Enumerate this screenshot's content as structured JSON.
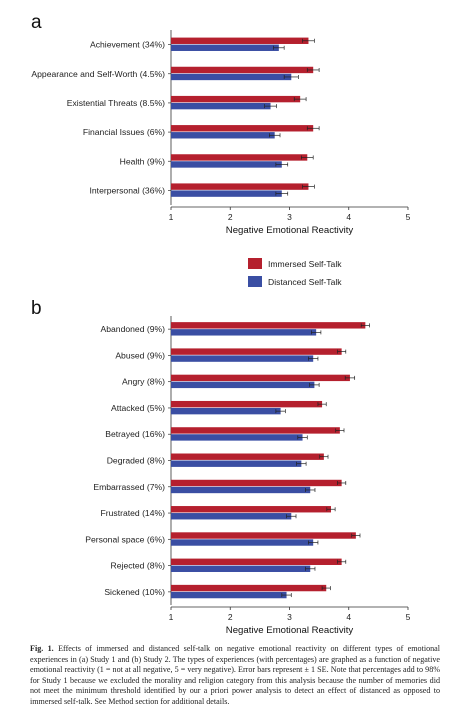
{
  "chart_data": [
    {
      "type": "bar",
      "orientation": "horizontal",
      "panel": "a",
      "categories": [
        "Achievement (34%)",
        "Appearance and Self-Worth (4.5%)",
        "Existential Threats (8.5%)",
        "Financial Issues (6%)",
        "Health (9%)",
        "Interpersonal (36%)"
      ],
      "series": [
        {
          "name": "Immersed Self-Talk",
          "values": [
            3.32,
            3.4,
            3.18,
            3.4,
            3.3,
            3.32
          ],
          "errors": [
            0.1,
            0.1,
            0.1,
            0.1,
            0.1,
            0.1
          ],
          "color": "#b5202e"
        },
        {
          "name": "Distanced Self-Talk",
          "values": [
            2.82,
            3.03,
            2.68,
            2.75,
            2.87,
            2.87
          ],
          "errors": [
            0.09,
            0.12,
            0.1,
            0.09,
            0.1,
            0.1
          ],
          "color": "#3a4ea3"
        }
      ],
      "xlabel": "Negative Emotional Reactivity",
      "xlim": [
        1,
        5
      ],
      "xticks": [
        "1",
        "2",
        "3",
        "4",
        "5"
      ],
      "legend": "bottom-right"
    },
    {
      "type": "bar",
      "orientation": "horizontal",
      "panel": "b",
      "categories": [
        "Abandoned (9%)",
        "Abused (9%)",
        "Angry (8%)",
        "Attacked (5%)",
        "Betrayed (16%)",
        "Degraded (8%)",
        "Embarrassed (7%)",
        "Frustrated (14%)",
        "Personal space (6%)",
        "Rejected (8%)",
        "Sickened (10%)"
      ],
      "series": [
        {
          "name": "Immersed Self-Talk",
          "values": [
            4.28,
            3.88,
            4.02,
            3.55,
            3.85,
            3.58,
            3.88,
            3.7,
            4.12,
            3.88,
            3.62
          ],
          "errors": [
            0.07,
            0.07,
            0.08,
            0.07,
            0.07,
            0.07,
            0.07,
            0.07,
            0.07,
            0.07,
            0.07
          ]
        },
        {
          "name": "Distanced Self-Talk",
          "values": [
            3.45,
            3.4,
            3.42,
            2.85,
            3.22,
            3.2,
            3.35,
            3.03,
            3.4,
            3.35,
            2.95
          ],
          "errors": [
            0.08,
            0.08,
            0.08,
            0.08,
            0.08,
            0.08,
            0.08,
            0.08,
            0.08,
            0.08,
            0.08
          ]
        }
      ],
      "xlabel": "Negative Emotional Reactivity",
      "xlim": [
        1,
        5
      ],
      "xticks": [
        "1",
        "2",
        "3",
        "4",
        "5"
      ]
    }
  ],
  "panel_letters": [
    "a",
    "b"
  ],
  "legend": {
    "immersed": "Immersed Self-Talk",
    "distanced": "Distanced Self-Talk"
  },
  "colors": {
    "immersed": "#b5202e",
    "distanced": "#3a4ea3"
  },
  "caption": {
    "label": "Fig. 1.",
    "text": "Effects of immersed and distanced self-talk on negative emotional reactivity on different types of emotional experiences in (a) Study 1 and (b) Study 2. The types of experiences (with percentages) are graphed as a function of negative emotional reactivity (1 = not at all negative, 5 = very negative). Error bars represent ± 1 SE. Note that percentages add to 98% for Study 1 because we excluded the morality and religion category from this analysis because the number of memories did not meet the minimum threshold identified by our a priori power analysis to detect an effect of distanced as opposed to immersed self-talk. See Method section for additional details."
  }
}
